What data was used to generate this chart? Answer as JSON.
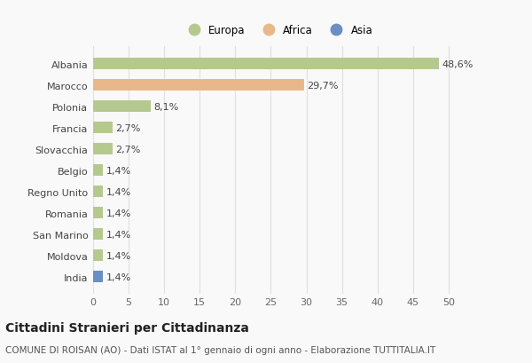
{
  "categories": [
    "Albania",
    "Marocco",
    "Polonia",
    "Francia",
    "Slovacchia",
    "Belgio",
    "Regno Unito",
    "Romania",
    "San Marino",
    "Moldova",
    "India"
  ],
  "values": [
    48.6,
    29.7,
    8.1,
    2.7,
    2.7,
    1.4,
    1.4,
    1.4,
    1.4,
    1.4,
    1.4
  ],
  "labels": [
    "48,6%",
    "29,7%",
    "8,1%",
    "2,7%",
    "2,7%",
    "1,4%",
    "1,4%",
    "1,4%",
    "1,4%",
    "1,4%",
    "1,4%"
  ],
  "continents": [
    "Europa",
    "Africa",
    "Europa",
    "Europa",
    "Europa",
    "Europa",
    "Europa",
    "Europa",
    "Europa",
    "Europa",
    "Asia"
  ],
  "colors": {
    "Europa": "#b5c98e",
    "Africa": "#e8b88a",
    "Asia": "#6b8ec4"
  },
  "xlim": [
    0,
    52
  ],
  "xticks": [
    0,
    5,
    10,
    15,
    20,
    25,
    30,
    35,
    40,
    45,
    50
  ],
  "title": "Cittadini Stranieri per Cittadinanza",
  "subtitle": "COMUNE DI ROISAN (AO) - Dati ISTAT al 1° gennaio di ogni anno - Elaborazione TUTTITALIA.IT",
  "background_color": "#f9f9f9",
  "grid_color": "#e0e0e0",
  "bar_height": 0.55,
  "label_fontsize": 8,
  "tick_fontsize": 8,
  "title_fontsize": 10,
  "subtitle_fontsize": 7.5,
  "legend_fontsize": 8.5
}
